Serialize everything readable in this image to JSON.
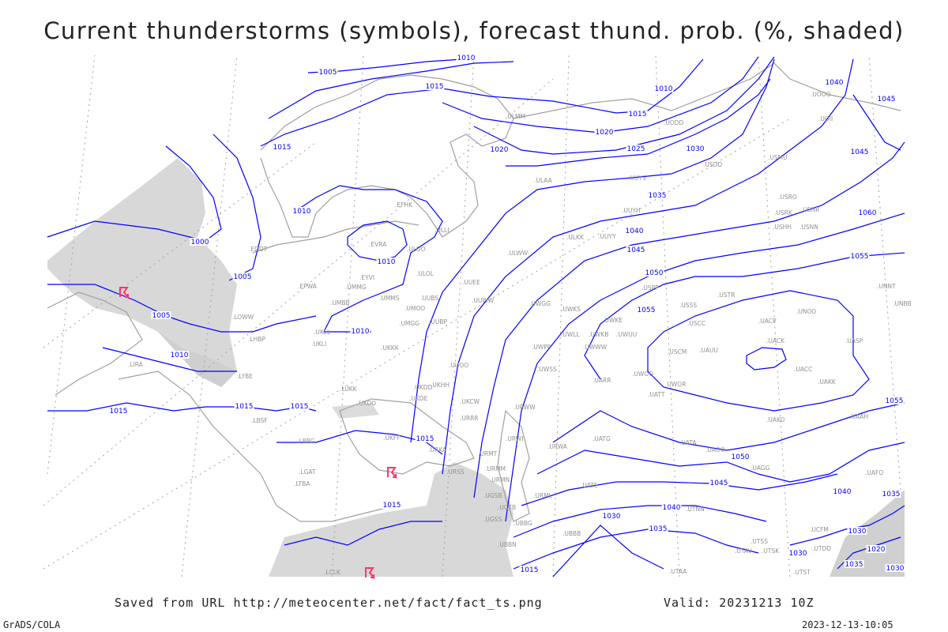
{
  "title": "Current thunderstorms (symbols), forecast thund. prob. (%, shaded)",
  "footer": {
    "source": "Saved from URL http://meteocenter.net/fact/fact_ts.png",
    "valid": "Valid: 20231213 10Z",
    "software": "GrADS/COLA",
    "timestamp": "2023-12-13-10:05"
  },
  "colors": {
    "isobar": "#0000ff",
    "coastline": "#a0a0a0",
    "shading": "#d8d8d8",
    "storm_symbol": "#ff3366",
    "graticule": "#a0a0a0"
  },
  "storm_symbol_icon": "thunderstorm-symbol",
  "isobar_labels": [
    "1010",
    "1005",
    "1015",
    "1010",
    "1015",
    "1020",
    "1025",
    "1030",
    "1015",
    "1020",
    "1010",
    "1000",
    "1005",
    "1010",
    "1005",
    "1010",
    "1010",
    "1015",
    "1015",
    "1015",
    "1015",
    "1035",
    "1040",
    "1045",
    "1050",
    "1055",
    "1055",
    "1060",
    "1045",
    "1040",
    "1045",
    "1055",
    "1050",
    "1045",
    "1040",
    "1035",
    "1030",
    "1030",
    "1040",
    "1035",
    "1030",
    "1015",
    "1020",
    "1035",
    "1030",
    "1015"
  ],
  "stations": [
    "EFHK",
    "ULLI",
    "ULOO",
    "EVRA",
    "ULOL",
    "EYVI",
    "UMMG",
    "UMMS",
    "UMOO",
    "UUBS",
    "UUEE",
    "UUWW",
    "UMGG",
    "UUBP",
    "UKKK",
    "UKLL",
    "UKLI",
    "UUOO",
    "UKHH",
    "UKDD",
    "UKDE",
    "UKCW",
    "URRR",
    "UKFF",
    "URKA",
    "URSS",
    "UGSB",
    "EDDT",
    "EPWA",
    "UMBB",
    "LOWW",
    "LHBP",
    "LIRA",
    "LYBE",
    "LUKK",
    "UKOO",
    "LBSF",
    "LBBG",
    "LGAT",
    "LCLK",
    "ULMM",
    "ULAA",
    "ULWW",
    "UUYS",
    "UUYH",
    "UUYY",
    "ULKK",
    "USPP",
    "USSS",
    "USTR",
    "USCC",
    "USCM",
    "UAUU",
    "UACK",
    "UACP",
    "UNOO",
    "UASP",
    "UACC",
    "UAKK",
    "UAKO",
    "UNNT",
    "UNBB",
    "USDD",
    "USMU",
    "USRO",
    "USRK",
    "USNR",
    "USHH",
    "USNN",
    "UODD",
    "UOII",
    "UOOO",
    "UATT",
    "UWOO",
    "UWOR",
    "UWUU",
    "UWKB",
    "UWKE",
    "UWWW",
    "UWLL",
    "UWKS",
    "UWGG",
    "UWPP",
    "UWSS",
    "URWW",
    "UARR",
    "URWI",
    "URWA",
    "UATG",
    "UATE",
    "URMT",
    "URMM",
    "URMN",
    "URML",
    "UBBB",
    "UBBN",
    "UGTB",
    "UGSS",
    "UBBG",
    "UTAV",
    "UTSK",
    "UTSS",
    "UTST",
    "UATA",
    "UAOO",
    "UAGG",
    "UTNN",
    "UTAA",
    "UAFO",
    "UCFM",
    "UTDD",
    "UAAH",
    "LTBA"
  ]
}
